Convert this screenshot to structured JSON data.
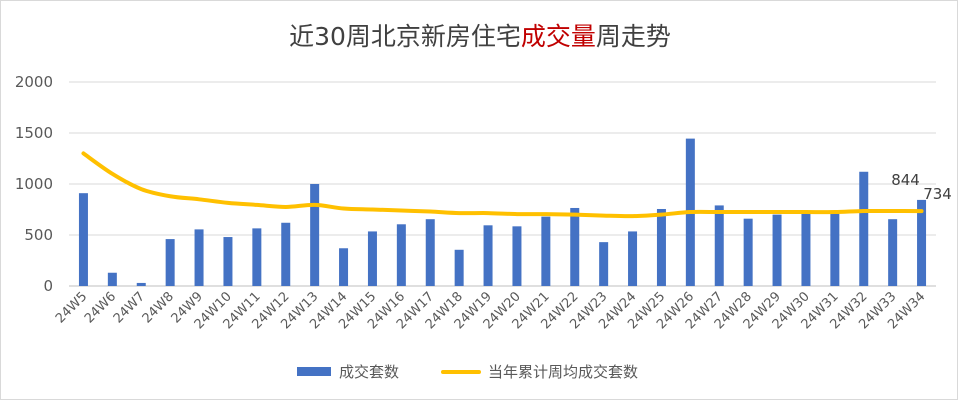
{
  "chart_data": {
    "type": "bar",
    "title_parts": [
      {
        "text": "近30周北京新房住宅",
        "color": "#404040"
      },
      {
        "text": "成交量",
        "color": "#C00000"
      },
      {
        "text": "周走势",
        "color": "#404040"
      }
    ],
    "categories": [
      "24W5",
      "24W6",
      "24W7",
      "24W8",
      "24W9",
      "24W10",
      "24W11",
      "24W12",
      "24W13",
      "24W14",
      "24W15",
      "24W16",
      "24W17",
      "24W18",
      "24W19",
      "24W20",
      "24W21",
      "24W22",
      "24W23",
      "24W24",
      "24W25",
      "24W26",
      "24W27",
      "24W28",
      "24W29",
      "24W30",
      "24W31",
      "24W32",
      "24W33",
      "24W34"
    ],
    "series": [
      {
        "name": "成交套数",
        "type": "bar",
        "color": "#4472C4",
        "values": [
          910,
          130,
          30,
          460,
          555,
          480,
          565,
          620,
          1000,
          370,
          535,
          605,
          655,
          355,
          595,
          585,
          680,
          765,
          430,
          535,
          755,
          1445,
          790,
          660,
          700,
          710,
          710,
          1120,
          655,
          844
        ]
      },
      {
        "name": "当年累计周均成交套数",
        "type": "line",
        "color": "#FFC000",
        "values": [
          1300,
          1100,
          950,
          880,
          850,
          815,
          795,
          775,
          795,
          760,
          750,
          740,
          730,
          715,
          715,
          705,
          705,
          700,
          690,
          685,
          700,
          725,
          725,
          725,
          725,
          725,
          725,
          735,
          735,
          734
        ]
      }
    ],
    "data_labels": [
      {
        "series": 0,
        "index": 29,
        "text": "844"
      },
      {
        "series": 1,
        "index": 29,
        "text": "734"
      }
    ],
    "y_ticks": [
      "0",
      "500",
      "1000",
      "1500",
      "2000"
    ],
    "ylim": [
      0,
      2000
    ],
    "grid": true,
    "legend": "bottom"
  }
}
